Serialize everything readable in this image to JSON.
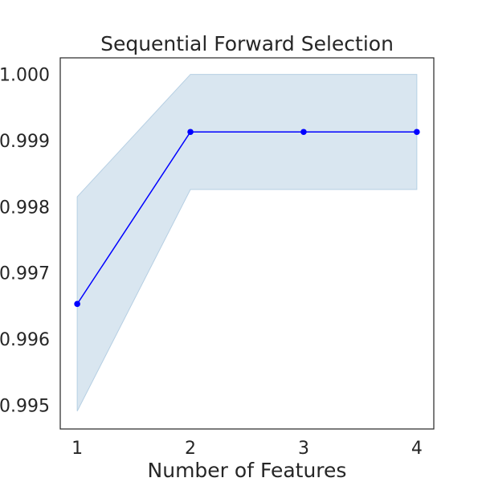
{
  "chart_data": {
    "type": "line",
    "title": "Sequential Forward Selection",
    "xlabel": "Number of Features",
    "ylabel": "",
    "x": [
      1,
      2,
      3,
      4
    ],
    "x_ticks": [
      "1",
      "2",
      "3",
      "4"
    ],
    "xlim": [
      0.85,
      4.15
    ],
    "y_ticks": [
      "0.995",
      "0.996",
      "0.997",
      "0.998",
      "0.999",
      "1.000"
    ],
    "ylim": [
      0.99464,
      1.00025
    ],
    "grid": false,
    "legend": "none",
    "series": [
      {
        "values": [
          0.99653,
          0.99913,
          0.99913,
          0.99913
        ],
        "lower": [
          0.99491,
          0.99826,
          0.99826,
          0.99826
        ],
        "upper": [
          0.99815,
          1.0,
          1.0,
          1.0
        ],
        "color": "#0000ff",
        "band_color": "#d9e6f0",
        "band_edge_color": "#b6cfe3"
      }
    ],
    "axis_color": "#262626",
    "text_color": "#262626"
  }
}
